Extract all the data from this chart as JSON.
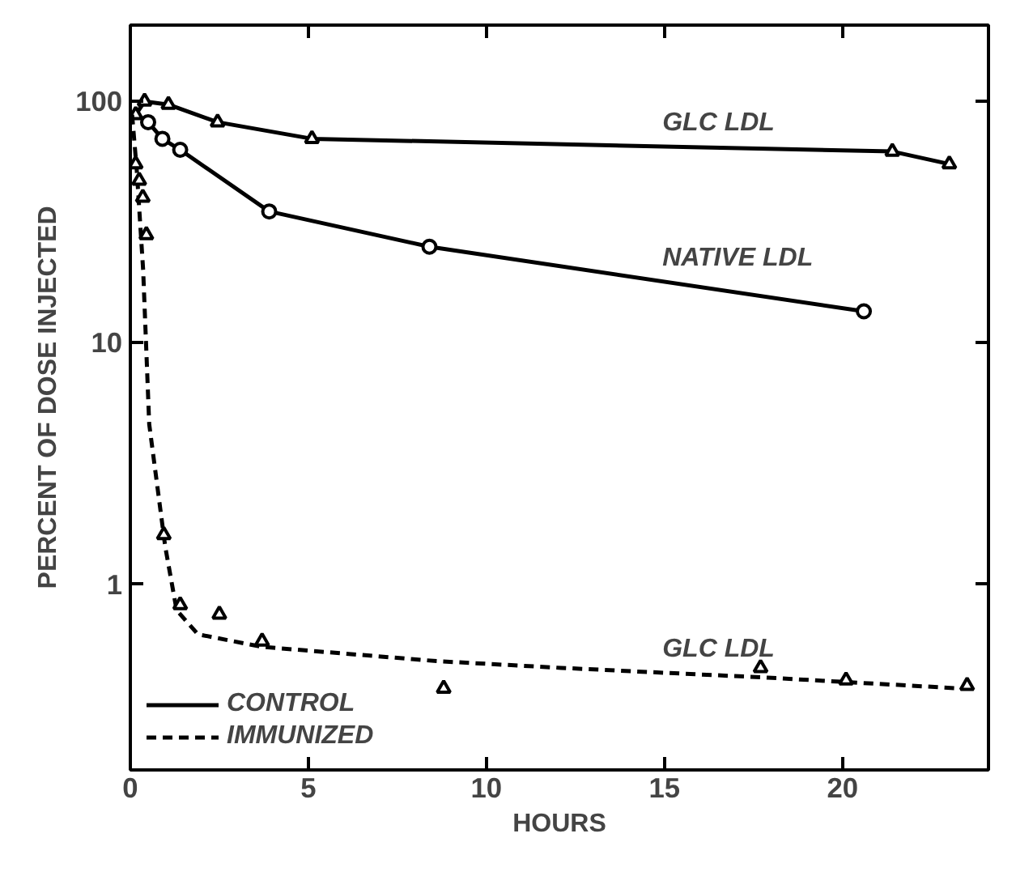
{
  "chart_data": {
    "type": "line",
    "xlabel": "HOURS",
    "ylabel": "PERCENT OF DOSE INJECTED",
    "log": "y",
    "xlim": [
      0,
      24.1
    ],
    "xticks": [
      0,
      5,
      10,
      15,
      20
    ],
    "ylim": [
      0.17,
      207
    ],
    "yticks": [
      1,
      10,
      100
    ],
    "grid": false,
    "legend": "bottom left",
    "line_style": "solid",
    "series": [
      {
        "name": "CONTROL",
        "color": "#000000",
        "marker": "triangle",
        "x": [
          0.15,
          0.4,
          1.07,
          2.45,
          5.1,
          21.4,
          23.0
        ],
        "values": [
          88,
          100,
          97,
          82,
          70,
          62,
          55
        ]
      },
      {
        "color": "#000000",
        "marker": "circle",
        "x": [
          0.5,
          0.9,
          1.4,
          3.9,
          8.4,
          20.6
        ],
        "values": [
          82,
          70,
          63,
          35,
          25,
          13.5
        ]
      },
      {
        "name": "IMMUNIZED",
        "color": "#000000",
        "marker": "none",
        "line_style": "dashed",
        "x": [
          0.05,
          0.18,
          0.36,
          0.53,
          0.98,
          1.3,
          1.9,
          3.7,
          8.6,
          12.1,
          17.9,
          23.3
        ],
        "values": [
          88,
          52,
          20,
          4.6,
          1.43,
          0.78,
          0.62,
          0.55,
          0.48,
          0.45,
          0.41,
          0.37
        ]
      },
      {
        "type": "scatter",
        "color": "#000000",
        "marker": "triangle",
        "x": [
          0.15,
          0.25,
          0.35,
          0.45,
          0.94,
          1.4,
          2.5,
          3.7,
          8.8,
          17.7,
          20.1,
          23.5
        ],
        "values": [
          55,
          47,
          40,
          28,
          1.6,
          0.82,
          0.75,
          0.58,
          0.37,
          0.45,
          0.4,
          0.38
        ]
      }
    ],
    "annotations": [
      "GLC LDL",
      "NATIVE LDL",
      "GLC LDL"
    ]
  }
}
